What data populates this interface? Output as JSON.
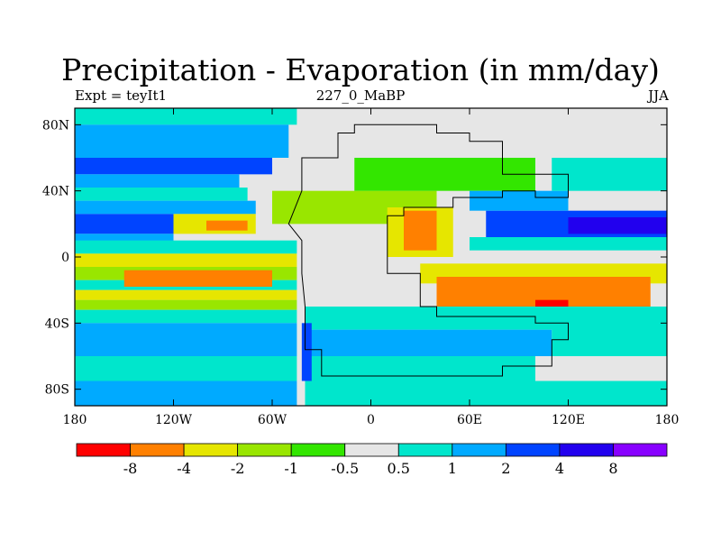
{
  "chart_data": {
    "type": "heatmap",
    "title": "Precipitation - Evaporation (in mm/day)",
    "subtitle_left": "Expt = teyIt1",
    "subtitle_center": "227_0_MaBP",
    "subtitle_right": "JJA",
    "x_range": [
      -180,
      180
    ],
    "y_range": [
      -90,
      90
    ],
    "x_ticks": [
      {
        "value": -180,
        "label": "180"
      },
      {
        "value": -120,
        "label": "120W"
      },
      {
        "value": -60,
        "label": "60W"
      },
      {
        "value": 0,
        "label": "0"
      },
      {
        "value": 60,
        "label": "60E"
      },
      {
        "value": 120,
        "label": "120E"
      },
      {
        "value": 180,
        "label": "180"
      }
    ],
    "y_ticks": [
      {
        "value": 80,
        "label": "80N"
      },
      {
        "value": 40,
        "label": "40N"
      },
      {
        "value": 0,
        "label": "0"
      },
      {
        "value": -40,
        "label": "40S"
      },
      {
        "value": -80,
        "label": "80S"
      }
    ],
    "colorbar": {
      "colors": [
        "#ff0000",
        "#ff8000",
        "#e6e600",
        "#99e600",
        "#33e600",
        "#e6e6e6",
        "#00e6cc",
        "#00aaff",
        "#0044ff",
        "#2200ee",
        "#8800ff"
      ],
      "boundary_labels": [
        "-8",
        "-4",
        "-2",
        "-1",
        "-0.5",
        "0.5",
        "1",
        "2",
        "4",
        "8"
      ]
    },
    "background_level": "#e6e6e6",
    "bands": [
      {
        "lat": [
          80,
          90
        ],
        "lon": [
          -180,
          -45
        ],
        "color": "#00e6cc"
      },
      {
        "lat": [
          60,
          80
        ],
        "lon": [
          -180,
          -50
        ],
        "color": "#00aaff"
      },
      {
        "lat": [
          50,
          60
        ],
        "lon": [
          -180,
          -60
        ],
        "color": "#0044ff"
      },
      {
        "lat": [
          42,
          50
        ],
        "lon": [
          -180,
          -80
        ],
        "color": "#00aaff"
      },
      {
        "lat": [
          34,
          42
        ],
        "lon": [
          -180,
          -75
        ],
        "color": "#00e6cc"
      },
      {
        "lat": [
          26,
          34
        ],
        "lon": [
          -180,
          -70
        ],
        "color": "#00aaff"
      },
      {
        "lat": [
          14,
          26
        ],
        "lon": [
          -180,
          -120
        ],
        "color": "#0044ff"
      },
      {
        "lat": [
          6,
          14
        ],
        "lon": [
          -180,
          -120
        ],
        "color": "#00aaff"
      },
      {
        "lat": [
          14,
          26
        ],
        "lon": [
          -120,
          -70
        ],
        "color": "#e6e600"
      },
      {
        "lat": [
          16,
          22
        ],
        "lon": [
          -100,
          -75
        ],
        "color": "#ff8000"
      },
      {
        "lat": [
          2,
          10
        ],
        "lon": [
          -180,
          -45
        ],
        "color": "#00e6cc"
      },
      {
        "lat": [
          -6,
          2
        ],
        "lon": [
          -180,
          -45
        ],
        "color": "#e6e600"
      },
      {
        "lat": [
          -14,
          -6
        ],
        "lon": [
          -180,
          -45
        ],
        "color": "#99e600"
      },
      {
        "lat": [
          -20,
          -14
        ],
        "lon": [
          -180,
          -45
        ],
        "color": "#00e6cc"
      },
      {
        "lat": [
          -26,
          -20
        ],
        "lon": [
          -180,
          -45
        ],
        "color": "#e6e600"
      },
      {
        "lat": [
          -18,
          -8
        ],
        "lon": [
          -150,
          -60
        ],
        "color": "#ff8000"
      },
      {
        "lat": [
          -32,
          -26
        ],
        "lon": [
          -180,
          -45
        ],
        "color": "#99e600"
      },
      {
        "lat": [
          -40,
          -32
        ],
        "lon": [
          -180,
          -45
        ],
        "color": "#00e6cc"
      },
      {
        "lat": [
          -60,
          -40
        ],
        "lon": [
          -180,
          -45
        ],
        "color": "#00aaff"
      },
      {
        "lat": [
          -75,
          -60
        ],
        "lon": [
          -180,
          -45
        ],
        "color": "#00e6cc"
      },
      {
        "lat": [
          -90,
          -75
        ],
        "lon": [
          -180,
          -45
        ],
        "color": "#00aaff"
      },
      {
        "lat": [
          20,
          40
        ],
        "lon": [
          -60,
          40
        ],
        "color": "#99e600"
      },
      {
        "lat": [
          40,
          60
        ],
        "lon": [
          -10,
          100
        ],
        "color": "#33e600"
      },
      {
        "lat": [
          60,
          80
        ],
        "lon": [
          10,
          60
        ],
        "color": "#e6e6e6"
      },
      {
        "lat": [
          0,
          30
        ],
        "lon": [
          10,
          50
        ],
        "color": "#e6e600"
      },
      {
        "lat": [
          4,
          28
        ],
        "lon": [
          20,
          40
        ],
        "color": "#ff8000"
      },
      {
        "lat": [
          12,
          28
        ],
        "lon": [
          70,
          180
        ],
        "color": "#0044ff"
      },
      {
        "lat": [
          14,
          24
        ],
        "lon": [
          120,
          180
        ],
        "color": "#2200ee"
      },
      {
        "lat": [
          4,
          12
        ],
        "lon": [
          60,
          180
        ],
        "color": "#00e6cc"
      },
      {
        "lat": [
          28,
          40
        ],
        "lon": [
          60,
          120
        ],
        "color": "#00aaff"
      },
      {
        "lat": [
          40,
          60
        ],
        "lon": [
          110,
          180
        ],
        "color": "#00e6cc"
      },
      {
        "lat": [
          -16,
          -4
        ],
        "lon": [
          30,
          180
        ],
        "color": "#e6e600"
      },
      {
        "lat": [
          -30,
          -12
        ],
        "lon": [
          40,
          170
        ],
        "color": "#ff8000"
      },
      {
        "lat": [
          -34,
          -26
        ],
        "lon": [
          100,
          120
        ],
        "color": "#ff0000"
      },
      {
        "lat": [
          -44,
          -30
        ],
        "lon": [
          -40,
          180
        ],
        "color": "#00e6cc"
      },
      {
        "lat": [
          -60,
          -44
        ],
        "lon": [
          -40,
          110
        ],
        "color": "#00aaff"
      },
      {
        "lat": [
          -60,
          -40
        ],
        "lon": [
          110,
          180
        ],
        "color": "#00e6cc"
      },
      {
        "lat": [
          -75,
          -60
        ],
        "lon": [
          -40,
          100
        ],
        "color": "#00e6cc"
      },
      {
        "lat": [
          -75,
          -40
        ],
        "lon": [
          -42,
          -36
        ],
        "color": "#0044ff"
      },
      {
        "lat": [
          -90,
          -75
        ],
        "lon": [
          -40,
          180
        ],
        "color": "#00e6cc"
      }
    ],
    "landmass": [
      [
        -42,
        60
      ],
      [
        -20,
        60
      ],
      [
        -20,
        75
      ],
      [
        -10,
        75
      ],
      [
        -10,
        80
      ],
      [
        40,
        80
      ],
      [
        40,
        75
      ],
      [
        60,
        75
      ],
      [
        60,
        70
      ],
      [
        80,
        70
      ],
      [
        80,
        50
      ],
      [
        120,
        50
      ],
      [
        120,
        36
      ],
      [
        100,
        36
      ],
      [
        100,
        40
      ],
      [
        80,
        40
      ],
      [
        80,
        36
      ],
      [
        50,
        36
      ],
      [
        50,
        30
      ],
      [
        20,
        30
      ],
      [
        20,
        25
      ],
      [
        10,
        25
      ],
      [
        10,
        -10
      ],
      [
        30,
        -10
      ],
      [
        30,
        -30
      ],
      [
        40,
        -30
      ],
      [
        40,
        -36
      ],
      [
        100,
        -36
      ],
      [
        100,
        -40
      ],
      [
        120,
        -40
      ],
      [
        120,
        -50
      ],
      [
        110,
        -50
      ],
      [
        110,
        -66
      ],
      [
        80,
        -66
      ],
      [
        80,
        -72
      ],
      [
        -30,
        -72
      ],
      [
        -30,
        -56
      ],
      [
        -40,
        -56
      ],
      [
        -40,
        -30
      ],
      [
        -42,
        -10
      ],
      [
        -42,
        10
      ],
      [
        -50,
        20
      ],
      [
        -42,
        40
      ]
    ]
  }
}
